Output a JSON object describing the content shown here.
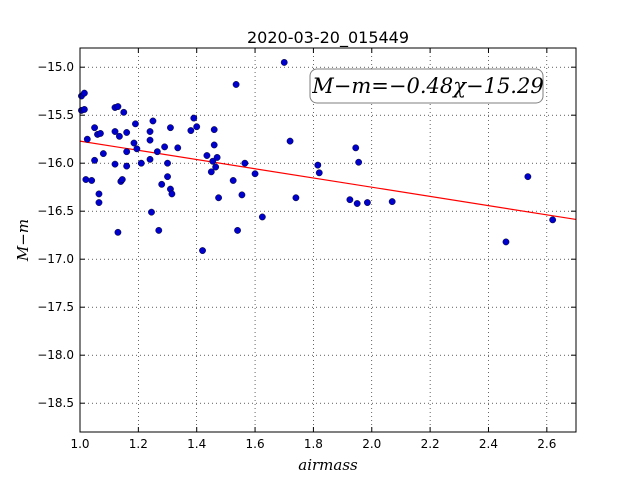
{
  "chart_data": {
    "type": "scatter",
    "title": "2020-03-20_015449",
    "xlabel": "airmass",
    "ylabel": "M−m",
    "xlim": [
      1.0,
      2.7
    ],
    "ylim": [
      -14.8,
      -18.8
    ],
    "y_inverted": true,
    "grid": true,
    "xticks": [
      1.0,
      1.2,
      1.4,
      1.6,
      1.8,
      2.0,
      2.2,
      2.4,
      2.6
    ],
    "xtick_labels": [
      "1.0",
      "1.2",
      "1.4",
      "1.6",
      "1.8",
      "2.0",
      "2.2",
      "2.4",
      "2.6"
    ],
    "yticks": [
      -15.0,
      -15.5,
      -16.0,
      -16.5,
      -17.0,
      -17.5,
      -18.0,
      -18.5
    ],
    "ytick_labels": [
      "−15.0",
      "−15.5",
      "−16.0",
      "−16.5",
      "−17.0",
      "−17.5",
      "−18.0",
      "−18.5"
    ],
    "annotation": "M−m=−0.48χ−15.29",
    "fit": {
      "slope": -0.48,
      "intercept": -15.29,
      "color": "#ff0000"
    },
    "point_color": "#0000cc",
    "points": [
      [
        1.005,
        -15.45
      ],
      [
        1.005,
        -15.3
      ],
      [
        1.015,
        -15.27
      ],
      [
        1.015,
        -15.44
      ],
      [
        1.02,
        -16.17
      ],
      [
        1.025,
        -15.75
      ],
      [
        1.04,
        -16.18
      ],
      [
        1.05,
        -15.63
      ],
      [
        1.05,
        -15.97
      ],
      [
        1.06,
        -15.7
      ],
      [
        1.065,
        -16.32
      ],
      [
        1.065,
        -16.41
      ],
      [
        1.07,
        -15.69
      ],
      [
        1.08,
        -15.9
      ],
      [
        1.12,
        -15.42
      ],
      [
        1.12,
        -15.67
      ],
      [
        1.12,
        -16.01
      ],
      [
        1.13,
        -15.41
      ],
      [
        1.13,
        -16.72
      ],
      [
        1.135,
        -15.72
      ],
      [
        1.14,
        -16.19
      ],
      [
        1.145,
        -16.17
      ],
      [
        1.15,
        -15.47
      ],
      [
        1.16,
        -15.68
      ],
      [
        1.16,
        -15.88
      ],
      [
        1.16,
        -16.03
      ],
      [
        1.185,
        -15.79
      ],
      [
        1.19,
        -15.59
      ],
      [
        1.195,
        -15.85
      ],
      [
        1.21,
        -16.0
      ],
      [
        1.24,
        -15.67
      ],
      [
        1.24,
        -15.76
      ],
      [
        1.24,
        -15.96
      ],
      [
        1.245,
        -16.51
      ],
      [
        1.25,
        -15.56
      ],
      [
        1.265,
        -15.88
      ],
      [
        1.27,
        -16.7
      ],
      [
        1.28,
        -16.22
      ],
      [
        1.29,
        -15.83
      ],
      [
        1.3,
        -16.14
      ],
      [
        1.3,
        -16.0
      ],
      [
        1.31,
        -15.63
      ],
      [
        1.31,
        -16.27
      ],
      [
        1.315,
        -16.32
      ],
      [
        1.335,
        -15.84
      ],
      [
        1.38,
        -15.66
      ],
      [
        1.39,
        -15.53
      ],
      [
        1.4,
        -15.62
      ],
      [
        1.42,
        -16.91
      ],
      [
        1.435,
        -15.92
      ],
      [
        1.45,
        -16.09
      ],
      [
        1.455,
        -15.98
      ],
      [
        1.46,
        -15.65
      ],
      [
        1.46,
        -15.81
      ],
      [
        1.465,
        -16.04
      ],
      [
        1.47,
        -15.94
      ],
      [
        1.475,
        -16.36
      ],
      [
        1.525,
        -16.18
      ],
      [
        1.535,
        -15.18
      ],
      [
        1.54,
        -16.7
      ],
      [
        1.555,
        -16.33
      ],
      [
        1.565,
        -16.0
      ],
      [
        1.6,
        -16.11
      ],
      [
        1.625,
        -16.56
      ],
      [
        1.7,
        -14.95
      ],
      [
        1.72,
        -15.77
      ],
      [
        1.74,
        -16.36
      ],
      [
        1.815,
        -16.02
      ],
      [
        1.82,
        -16.1
      ],
      [
        1.925,
        -16.38
      ],
      [
        1.945,
        -15.84
      ],
      [
        1.95,
        -16.42
      ],
      [
        1.955,
        -15.99
      ],
      [
        1.985,
        -16.41
      ],
      [
        2.07,
        -16.4
      ],
      [
        2.46,
        -16.82
      ],
      [
        2.535,
        -16.14
      ],
      [
        2.62,
        -16.59
      ]
    ]
  }
}
